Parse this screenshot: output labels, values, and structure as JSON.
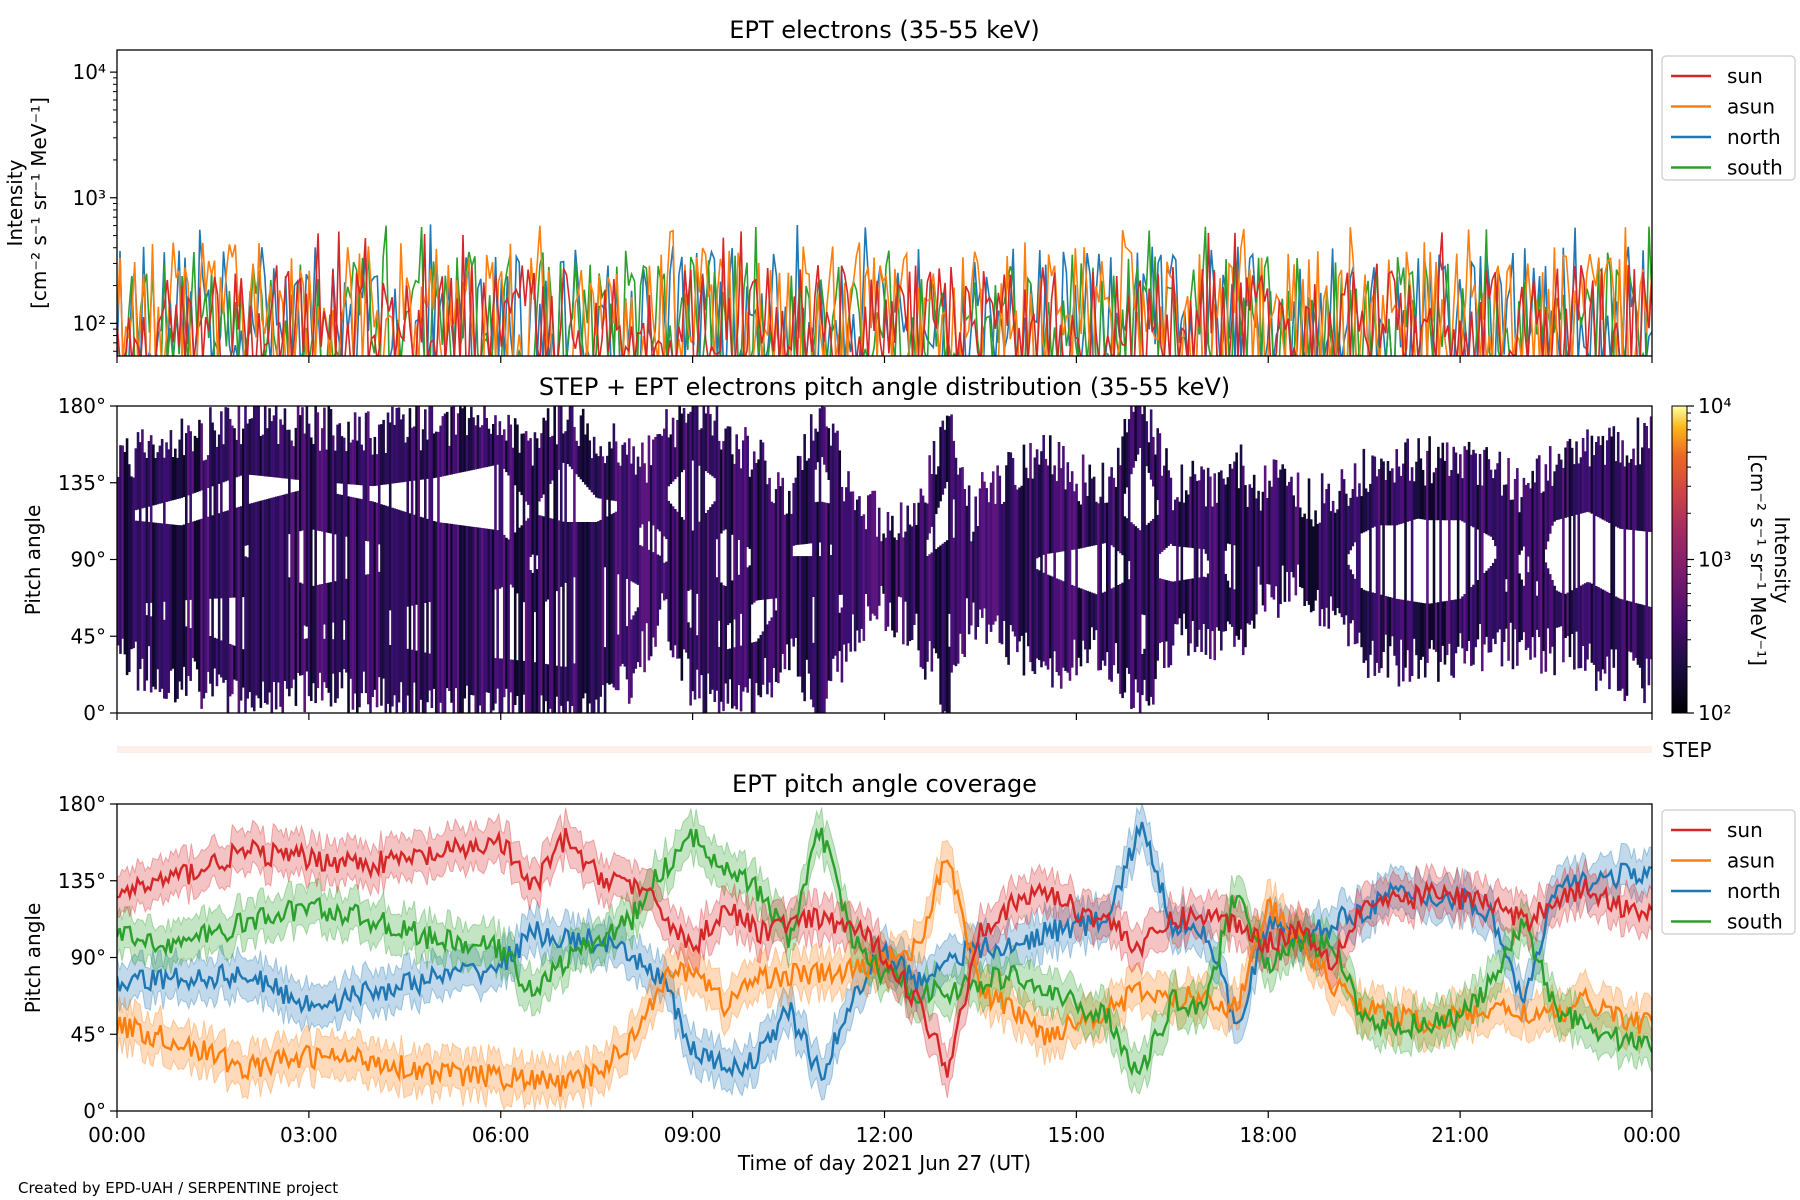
{
  "chart_data": [
    {
      "type": "line",
      "title": "EPT electrons (35-55 keV)",
      "ylabel": [
        "Intensity",
        "[cm⁻² s⁻¹ sr⁻¹ MeV⁻¹]"
      ],
      "yscale": "log",
      "ylim": [
        55,
        15000
      ],
      "xlim": [
        "2021-06-27T00:00",
        "2021-06-28T00:00"
      ],
      "ytick_labels": [
        "10²",
        "10³",
        "10⁴"
      ],
      "legend": {
        "placement": "outside right, top",
        "entries": [
          "sun",
          "asun",
          "north",
          "south"
        ]
      },
      "series": [
        {
          "name": "sun",
          "color": "#d62728",
          "typical_range": [
            55,
            300
          ],
          "peak": 550
        },
        {
          "name": "asun",
          "color": "#ff7f0e",
          "typical_range": [
            70,
            450
          ],
          "peak": 620
        },
        {
          "name": "north",
          "color": "#1f77b4",
          "typical_range": [
            55,
            420
          ],
          "peak": 620
        },
        {
          "name": "south",
          "color": "#2ca02c",
          "typical_range": [
            55,
            380
          ],
          "peak": 600
        }
      ]
    },
    {
      "type": "heatmap",
      "title": "STEP + EPT electrons pitch angle distribution (35-55 keV)",
      "ylabel": "Pitch angle",
      "ylim": [
        0,
        180
      ],
      "yticks": [
        "0°",
        "45°",
        "90°",
        "135°",
        "180°"
      ],
      "colorbar": {
        "label": [
          "Intensity",
          "[cm⁻² s⁻¹ sr⁻¹ MeV⁻¹]"
        ],
        "scale": "log",
        "range": [
          100,
          10000
        ],
        "tick_labels": [
          "10²",
          "10³",
          "10⁴"
        ],
        "colormap": "inferno"
      },
      "step_strip_label": "STEP"
    },
    {
      "type": "line",
      "title": "EPT pitch angle coverage",
      "ylabel": "Pitch angle",
      "xlabel": "Time of day 2021 Jun 27 (UT)",
      "ylim": [
        0,
        180
      ],
      "yticks": [
        "0°",
        "45°",
        "90°",
        "135°",
        "180°"
      ],
      "xtick_labels": [
        "00:00",
        "03:00",
        "06:00",
        "09:00",
        "12:00",
        "15:00",
        "18:00",
        "21:00",
        "00:00"
      ],
      "legend": {
        "placement": "outside right, top",
        "entries": [
          "sun",
          "asun",
          "north",
          "south"
        ]
      },
      "x_hours": [
        0,
        1,
        2,
        3,
        4,
        5,
        6,
        6.5,
        7,
        7.5,
        8,
        8.5,
        9,
        9.5,
        10,
        10.5,
        11,
        11.5,
        12,
        12.5,
        13,
        13.5,
        14,
        14.5,
        15,
        15.5,
        16,
        16.5,
        17,
        17.5,
        18,
        18.5,
        19,
        19.5,
        20,
        20.5,
        21,
        21.5,
        22,
        22.5,
        23,
        23.5,
        24
      ],
      "series": [
        {
          "name": "sun",
          "color": "#d62728",
          "values": [
            128,
            138,
            152,
            148,
            145,
            150,
            158,
            130,
            160,
            138,
            135,
            118,
            95,
            120,
            105,
            110,
            112,
            108,
            92,
            65,
            25,
            108,
            120,
            130,
            118,
            112,
            95,
            112,
            115,
            110,
            98,
            108,
            88,
            122,
            122,
            128,
            125,
            122,
            110,
            125,
            130,
            120,
            118
          ]
        },
        {
          "name": "asun",
          "color": "#ff7f0e",
          "values": [
            50,
            40,
            25,
            32,
            30,
            22,
            20,
            18,
            15,
            22,
            40,
            75,
            85,
            62,
            78,
            80,
            80,
            82,
            88,
            95,
            150,
            70,
            60,
            45,
            52,
            60,
            70,
            65,
            68,
            60,
            120,
            100,
            75,
            60,
            55,
            52,
            55,
            60,
            58,
            55,
            65,
            55,
            50
          ]
        },
        {
          "name": "north",
          "color": "#1f77b4",
          "values": [
            75,
            78,
            80,
            62,
            70,
            78,
            85,
            105,
            100,
            100,
            90,
            80,
            35,
            25,
            30,
            60,
            20,
            65,
            95,
            75,
            90,
            95,
            95,
            105,
            108,
            112,
            168,
            110,
            108,
            50,
            110,
            100,
            110,
            118,
            128,
            125,
            125,
            115,
            62,
            130,
            135,
            138,
            140
          ]
        },
        {
          "name": "south",
          "color": "#2ca02c",
          "values": [
            102,
            98,
            110,
            120,
            112,
            100,
            95,
            70,
            88,
            100,
            110,
            140,
            160,
            145,
            130,
            100,
            165,
            100,
            80,
            70,
            70,
            75,
            80,
            70,
            62,
            55,
            20,
            65,
            62,
            130,
            85,
            100,
            95,
            55,
            50,
            52,
            55,
            75,
            110,
            60,
            50,
            42,
            40
          ]
        }
      ]
    }
  ],
  "footer": {
    "credit": "Created by EPD-UAH / SERPENTINE project"
  }
}
